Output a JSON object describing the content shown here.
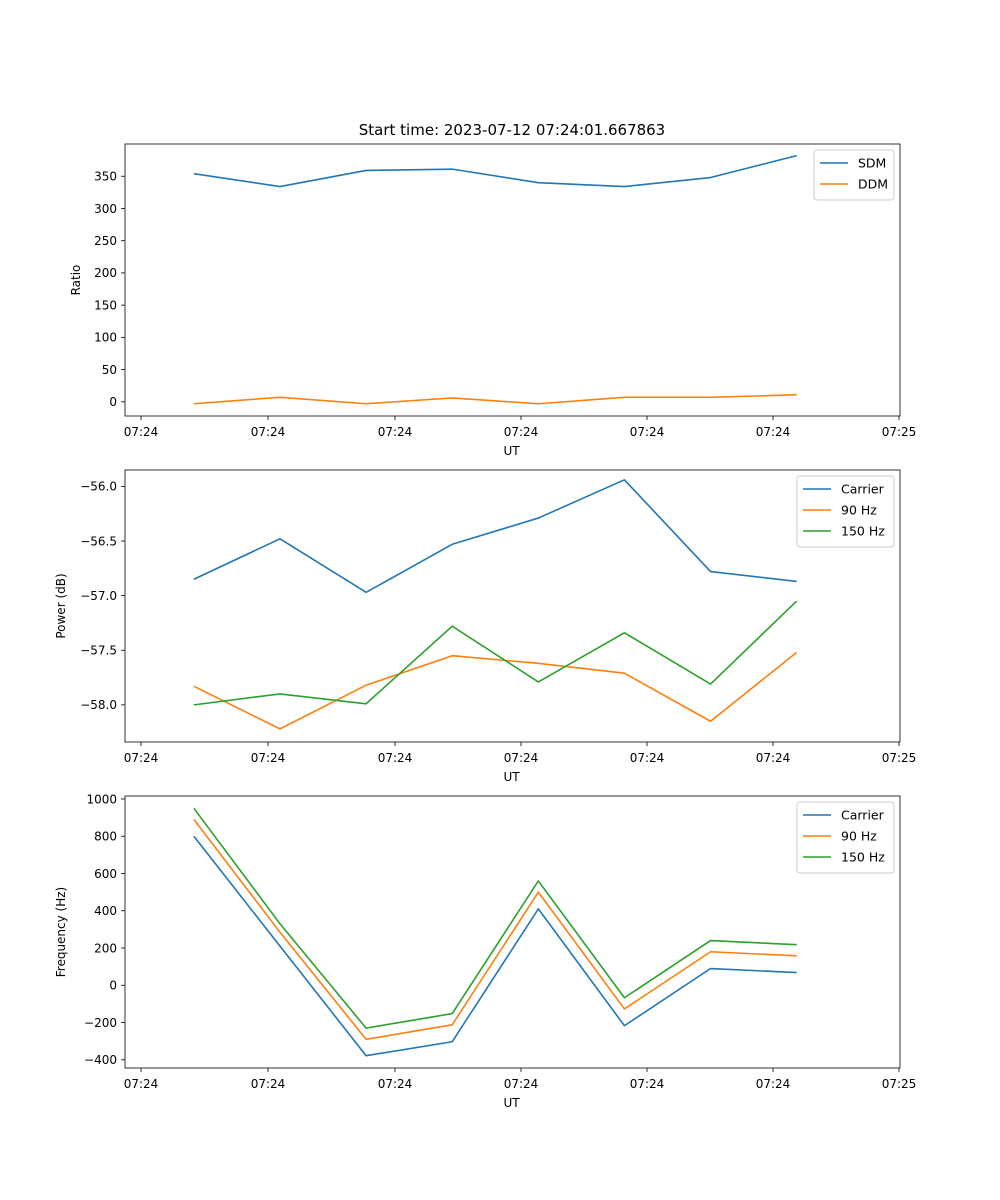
{
  "figure_title": "Start time: 2023-07-12 07:24:01.667863",
  "colors": {
    "blue": "#1f77b4",
    "orange": "#ff7f0e",
    "green": "#2ca02c"
  },
  "chart_data": [
    {
      "type": "line",
      "title": "Start time: 2023-07-12 07:24:01.667863",
      "xlabel": "UT",
      "ylabel": "Ratio",
      "x_tick_labels": [
        "07:24",
        "07:24",
        "07:24",
        "07:24",
        "07:24",
        "07:24",
        "07:25"
      ],
      "x_points": [
        1,
        2,
        3,
        4,
        5,
        6,
        7,
        8
      ],
      "xlim": [
        0.2,
        9.2
      ],
      "ylim": [
        -22,
        400
      ],
      "y_ticks": [
        0,
        50,
        100,
        150,
        200,
        250,
        300,
        350
      ],
      "legend_position": "top-right",
      "series": [
        {
          "name": "SDM",
          "color": "#1f77b4",
          "values": [
            354,
            334,
            359,
            361,
            340,
            334,
            348,
            382
          ]
        },
        {
          "name": "DDM",
          "color": "#ff7f0e",
          "values": [
            -3,
            7,
            -3,
            6,
            -3,
            7,
            7,
            11
          ]
        }
      ]
    },
    {
      "type": "line",
      "xlabel": "UT",
      "ylabel": "Power (dB)",
      "x_tick_labels": [
        "07:24",
        "07:24",
        "07:24",
        "07:24",
        "07:24",
        "07:24",
        "07:25"
      ],
      "x_points": [
        1,
        2,
        3,
        4,
        5,
        6,
        7,
        8
      ],
      "xlim": [
        0.2,
        9.2
      ],
      "ylim": [
        -58.34,
        -55.85
      ],
      "y_ticks": [
        -58.0,
        -57.5,
        -57.0,
        -56.5,
        -56.0
      ],
      "y_tick_labels": [
        "−58.0",
        "−57.5",
        "−57.0",
        "−56.5",
        "−56.0"
      ],
      "legend_position": "top-right",
      "series": [
        {
          "name": "Carrier",
          "color": "#1f77b4",
          "values": [
            -56.85,
            -56.48,
            -56.97,
            -56.53,
            -56.29,
            -55.94,
            -56.78,
            -56.87
          ]
        },
        {
          "name": "90 Hz",
          "color": "#ff7f0e",
          "values": [
            -57.83,
            -58.22,
            -57.82,
            -57.55,
            -57.62,
            -57.71,
            -58.15,
            -57.52
          ]
        },
        {
          "name": "150 Hz",
          "color": "#2ca02c",
          "values": [
            -58.0,
            -57.9,
            -57.99,
            -57.28,
            -57.79,
            -57.34,
            -57.81,
            -57.05
          ]
        }
      ]
    },
    {
      "type": "line",
      "xlabel": "UT",
      "ylabel": "Frequency (Hz)",
      "x_tick_labels": [
        "07:24",
        "07:24",
        "07:24",
        "07:24",
        "07:24",
        "07:24",
        "07:25"
      ],
      "x_points": [
        1,
        2,
        3,
        4,
        5,
        6,
        7,
        8
      ],
      "xlim": [
        0.2,
        9.2
      ],
      "ylim": [
        -444,
        1016
      ],
      "y_ticks": [
        -400,
        -200,
        0,
        200,
        400,
        600,
        800,
        1000
      ],
      "y_tick_labels": [
        "−400",
        "−200",
        "0",
        "200",
        "400",
        "600",
        "800",
        "1000"
      ],
      "legend_position": "top-right",
      "series": [
        {
          "name": "Carrier",
          "color": "#1f77b4",
          "values": [
            800,
            210,
            -378,
            -303,
            410,
            -217,
            90,
            68
          ]
        },
        {
          "name": "90 Hz",
          "color": "#ff7f0e",
          "values": [
            890,
            285,
            -290,
            -212,
            500,
            -127,
            180,
            158
          ]
        },
        {
          "name": "150 Hz",
          "color": "#2ca02c",
          "values": [
            950,
            330,
            -230,
            -152,
            560,
            -67,
            240,
            218
          ]
        }
      ]
    }
  ]
}
